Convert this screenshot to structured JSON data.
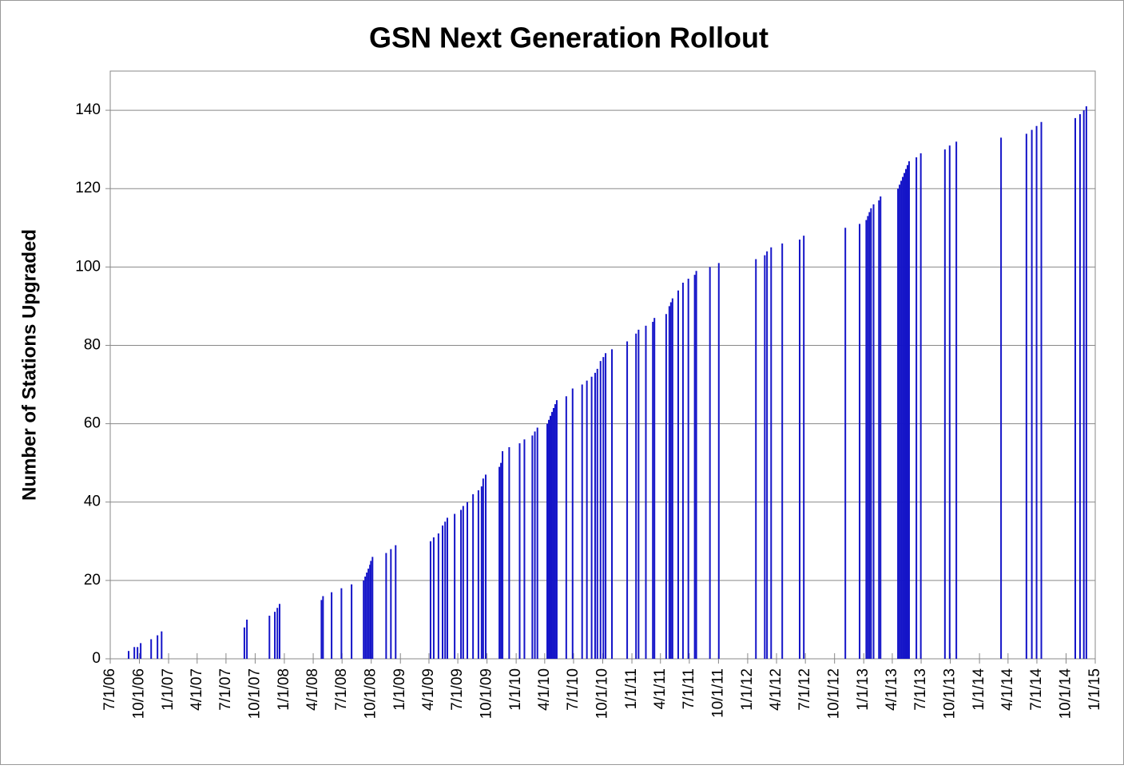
{
  "chart_data": {
    "type": "spike",
    "title": "GSN Next Generation Rollout",
    "y_label": "Number of Stations Upgraded",
    "color": "#1414c8",
    "grid": true,
    "xlim": [
      "7/1/06",
      "1/1/15"
    ],
    "xticks": [
      "7/1/06",
      "10/1/06",
      "1/1/07",
      "4/1/07",
      "7/1/07",
      "10/1/07",
      "1/1/08",
      "4/1/08",
      "7/1/08",
      "10/1/08",
      "1/1/09",
      "4/1/09",
      "7/1/09",
      "10/1/09",
      "1/1/10",
      "4/1/10",
      "7/1/10",
      "10/1/10",
      "1/1/11",
      "4/1/11",
      "7/1/11",
      "10/1/11",
      "1/1/12",
      "4/1/12",
      "7/1/12",
      "10/1/12",
      "1/1/13",
      "4/1/13",
      "7/1/13",
      "10/1/13",
      "1/1/14",
      "4/1/14",
      "7/1/14",
      "10/1/14",
      "1/1/15"
    ],
    "ylim": [
      0,
      150
    ],
    "yticks": [
      0,
      20,
      40,
      60,
      80,
      100,
      120,
      140
    ],
    "x": [
      "8/28/06",
      "9/15/06",
      "9/25/06",
      "10/5/06",
      "11/7/06",
      "11/27/06",
      "12/10/06",
      "8/28/07",
      "9/5/07",
      "11/15/07",
      "12/2/07",
      "12/10/07",
      "12/17/07",
      "4/27/08",
      "5/2/08",
      "5/29/08",
      "6/29/08",
      "7/31/08",
      "9/7/08",
      "9/12/08",
      "9/17/08",
      "9/22/08",
      "9/27/08",
      "9/30/08",
      "10/5/08",
      "11/17/08",
      "12/2/08",
      "12/17/08",
      "4/6/09",
      "4/16/09",
      "5/1/09",
      "5/14/09",
      "5/22/09",
      "5/29/09",
      "6/21/09",
      "7/11/09",
      "7/18/09",
      "7/31/09",
      "8/18/09",
      "9/4/09",
      "9/14/09",
      "9/19/09",
      "9/27/09",
      "11/9/09",
      "11/14/09",
      "11/19/09",
      "12/10/09",
      "1/12/10",
      "1/27/10",
      "2/21/10",
      "3/1/10",
      "3/9/10",
      "4/9/10",
      "4/14/10",
      "4/19/10",
      "4/24/10",
      "4/29/10",
      "5/4/10",
      "5/9/10",
      "6/8/10",
      "6/28/10",
      "7/28/10",
      "8/12/10",
      "8/27/10",
      "9/7/10",
      "9/14/10",
      "9/24/10",
      "10/3/10",
      "10/10/10",
      "10/30/10",
      "12/17/10",
      "1/14/11",
      "1/22/11",
      "2/14/11",
      "3/8/11",
      "3/13/11",
      "4/19/11",
      "4/29/11",
      "5/4/11",
      "5/9/11",
      "5/27/11",
      "6/11/11",
      "6/28/11",
      "7/18/11",
      "7/23/11",
      "9/4/11",
      "10/2/11",
      "1/27/12",
      "2/24/12",
      "3/2/12",
      "3/15/12",
      "4/19/12",
      "6/13/12",
      "6/26/12",
      "11/4/12",
      "12/19/12",
      "1/9/13",
      "1/14/13",
      "1/19/13",
      "1/24/13",
      "2/1/13",
      "2/18/13",
      "2/23/13",
      "4/19/13",
      "4/24/13",
      "4/29/13",
      "5/4/13",
      "5/9/13",
      "5/14/13",
      "5/19/13",
      "5/24/13",
      "6/16/13",
      "6/30/13",
      "9/14/13",
      "9/29/13",
      "10/20/13",
      "3/10/14",
      "5/29/14",
      "6/15/14",
      "6/30/14",
      "7/15/14",
      "10/30/14",
      "11/14/14",
      "11/26/14",
      "12/4/14"
    ],
    "values": [
      2,
      3,
      3,
      4,
      5,
      6,
      7,
      8,
      10,
      11,
      12,
      13,
      14,
      15,
      16,
      17,
      18,
      19,
      20,
      21,
      22,
      23,
      24,
      25,
      26,
      27,
      28,
      29,
      30,
      31,
      32,
      34,
      35,
      36,
      37,
      38,
      39,
      40,
      42,
      43,
      44,
      46,
      47,
      49,
      50,
      53,
      54,
      55,
      56,
      57,
      58,
      59,
      60,
      61,
      62,
      63,
      64,
      65,
      66,
      67,
      69,
      70,
      71,
      72,
      73,
      74,
      76,
      77,
      78,
      79,
      81,
      83,
      84,
      85,
      86,
      87,
      88,
      90,
      91,
      92,
      94,
      96,
      97,
      98,
      99,
      100,
      101,
      102,
      103,
      104,
      105,
      106,
      107,
      108,
      110,
      111,
      112,
      113,
      114,
      115,
      116,
      117,
      118,
      120,
      121,
      122,
      123,
      124,
      125,
      126,
      127,
      128,
      129,
      130,
      131,
      132,
      133,
      134,
      135,
      136,
      137,
      138,
      139,
      140,
      141
    ]
  }
}
